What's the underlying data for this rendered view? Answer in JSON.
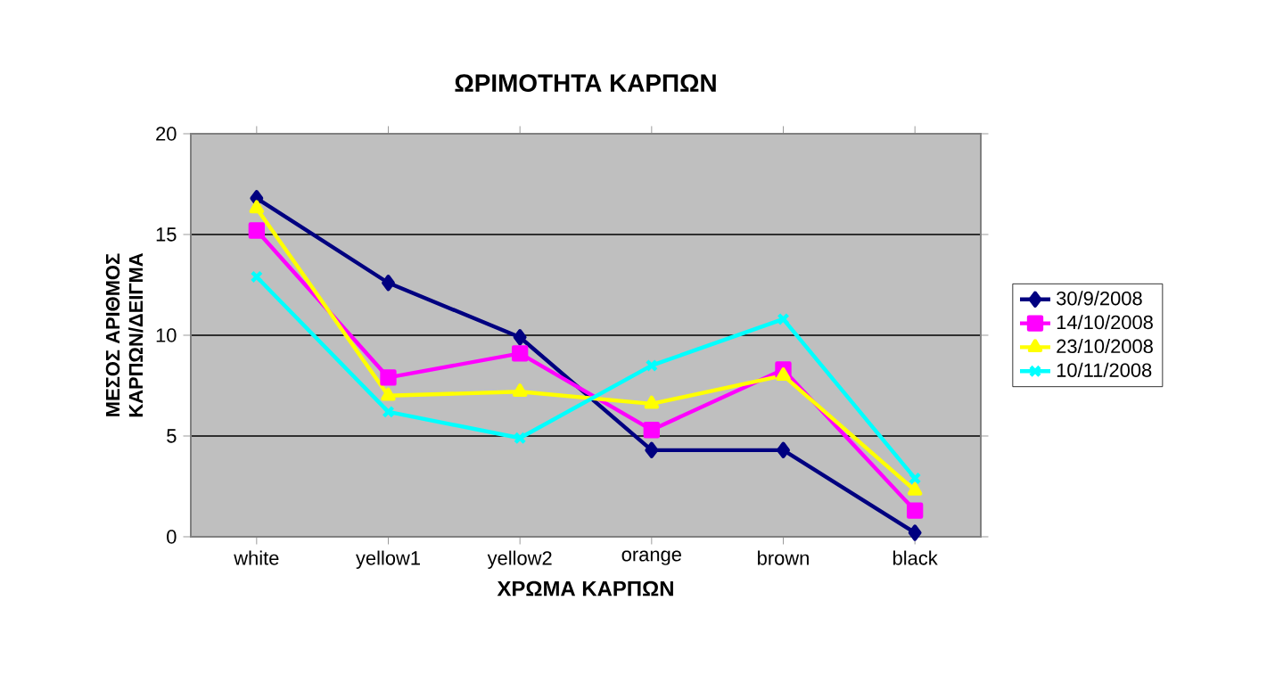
{
  "chart_data": {
    "type": "line",
    "title": "ΩΡΙΜΟΤΗΤΑ ΚΑΡΠΩΝ",
    "xlabel": "ΧΡΩΜΑ ΚΑΡΠΩΝ",
    "ylabel": "ΜΕΣΟΣ ΑΡΙΘΜΟΣ ΚΑΡΠΩΝ/ΔΕΙΓΜΑ",
    "categories": [
      "white",
      "yellow1",
      "yellow2",
      "orange",
      "brown",
      "black"
    ],
    "series": [
      {
        "name": "30/9/2008",
        "color": "#000080",
        "marker": "diamond",
        "values": [
          16.8,
          12.6,
          9.9,
          4.3,
          4.3,
          0.2
        ]
      },
      {
        "name": "14/10/2008",
        "color": "#ff00ff",
        "marker": "square",
        "values": [
          15.2,
          7.9,
          9.1,
          5.3,
          8.3,
          1.3
        ]
      },
      {
        "name": "23/10/2008",
        "color": "#ffff00",
        "marker": "triangle",
        "values": [
          16.3,
          7.0,
          7.2,
          6.6,
          8.0,
          2.3
        ]
      },
      {
        "name": "10/11/2008",
        "color": "#00ffff",
        "marker": "cross",
        "values": [
          12.9,
          6.2,
          4.9,
          8.5,
          10.8,
          2.9
        ]
      }
    ],
    "ylim": [
      0,
      20
    ],
    "yticks": [
      0,
      5,
      10,
      15,
      20
    ],
    "grid": "y",
    "legend": "right"
  }
}
